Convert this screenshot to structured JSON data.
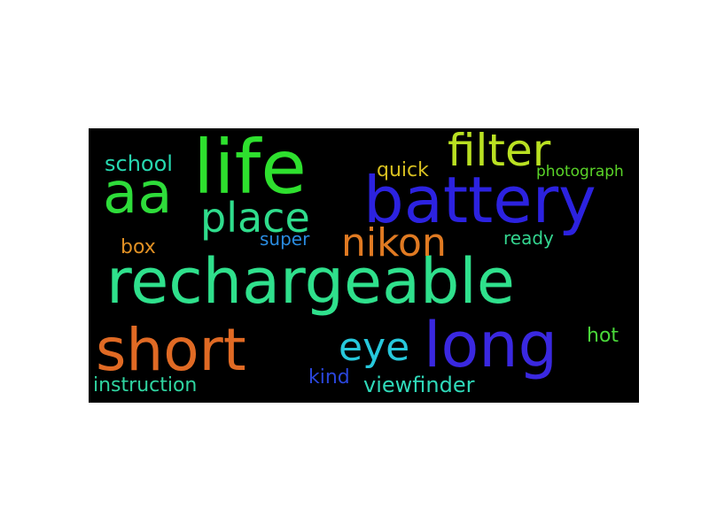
{
  "word_cloud": {
    "background": "#000000",
    "words": [
      {
        "text": "life",
        "color": "#2ee02e"
      },
      {
        "text": "battery",
        "color": "#2c22e0"
      },
      {
        "text": "rechargeable",
        "color": "#2fe08c"
      },
      {
        "text": "filter",
        "color": "#b9e022"
      },
      {
        "text": "aa",
        "color": "#2edc3a"
      },
      {
        "text": "place",
        "color": "#2fdc8c"
      },
      {
        "text": "nikon",
        "color": "#e07a22"
      },
      {
        "text": "short",
        "color": "#e06a24"
      },
      {
        "text": "long",
        "color": "#3a28e0"
      },
      {
        "text": "eye",
        "color": "#27c8dc"
      },
      {
        "text": "school",
        "color": "#27d8b0"
      },
      {
        "text": "quick",
        "color": "#d8c020"
      },
      {
        "text": "photograph",
        "color": "#5ad428"
      },
      {
        "text": "box",
        "color": "#e09024"
      },
      {
        "text": "super",
        "color": "#2a8ce0"
      },
      {
        "text": "ready",
        "color": "#34d690"
      },
      {
        "text": "hot",
        "color": "#4ad83a"
      },
      {
        "text": "instruction",
        "color": "#2fd4a0"
      },
      {
        "text": "kind",
        "color": "#2a46dc"
      },
      {
        "text": "viewfinder",
        "color": "#2fd8b8"
      }
    ]
  }
}
